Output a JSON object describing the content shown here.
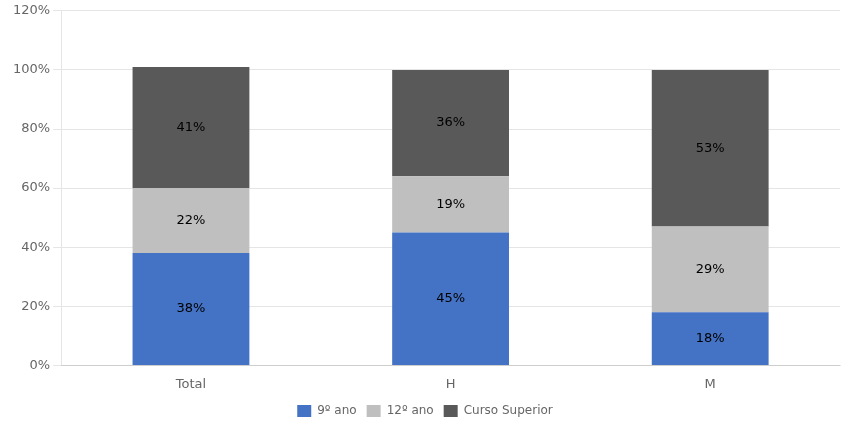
{
  "chart_data": {
    "type": "bar",
    "stacked": true,
    "categories": [
      "Total",
      "H",
      "M"
    ],
    "series": [
      {
        "name": "9º ano",
        "color": "#4472C4",
        "values": [
          38,
          45,
          18
        ],
        "value_labels": [
          "38%",
          "45%",
          "18%"
        ]
      },
      {
        "name": "12º ano",
        "color": "#BFBFBF",
        "values": [
          22,
          19,
          29
        ],
        "value_labels": [
          "22%",
          "19%",
          "29%"
        ]
      },
      {
        "name": "Curso Superior",
        "color": "#595959",
        "values": [
          41,
          36,
          53
        ],
        "value_labels": [
          "41%",
          "36%",
          "53%"
        ]
      }
    ],
    "ylim": [
      0,
      120
    ],
    "yticks": [
      {
        "value": 0,
        "label": "0%"
      },
      {
        "value": 20,
        "label": "20%"
      },
      {
        "value": 40,
        "label": "40%"
      },
      {
        "value": 60,
        "label": "60%"
      },
      {
        "value": 80,
        "label": "80%"
      },
      {
        "value": 100,
        "label": "100%"
      },
      {
        "value": 120,
        "label": "120%"
      }
    ],
    "grid": true,
    "legend": "bottom",
    "data_labels": true
  }
}
